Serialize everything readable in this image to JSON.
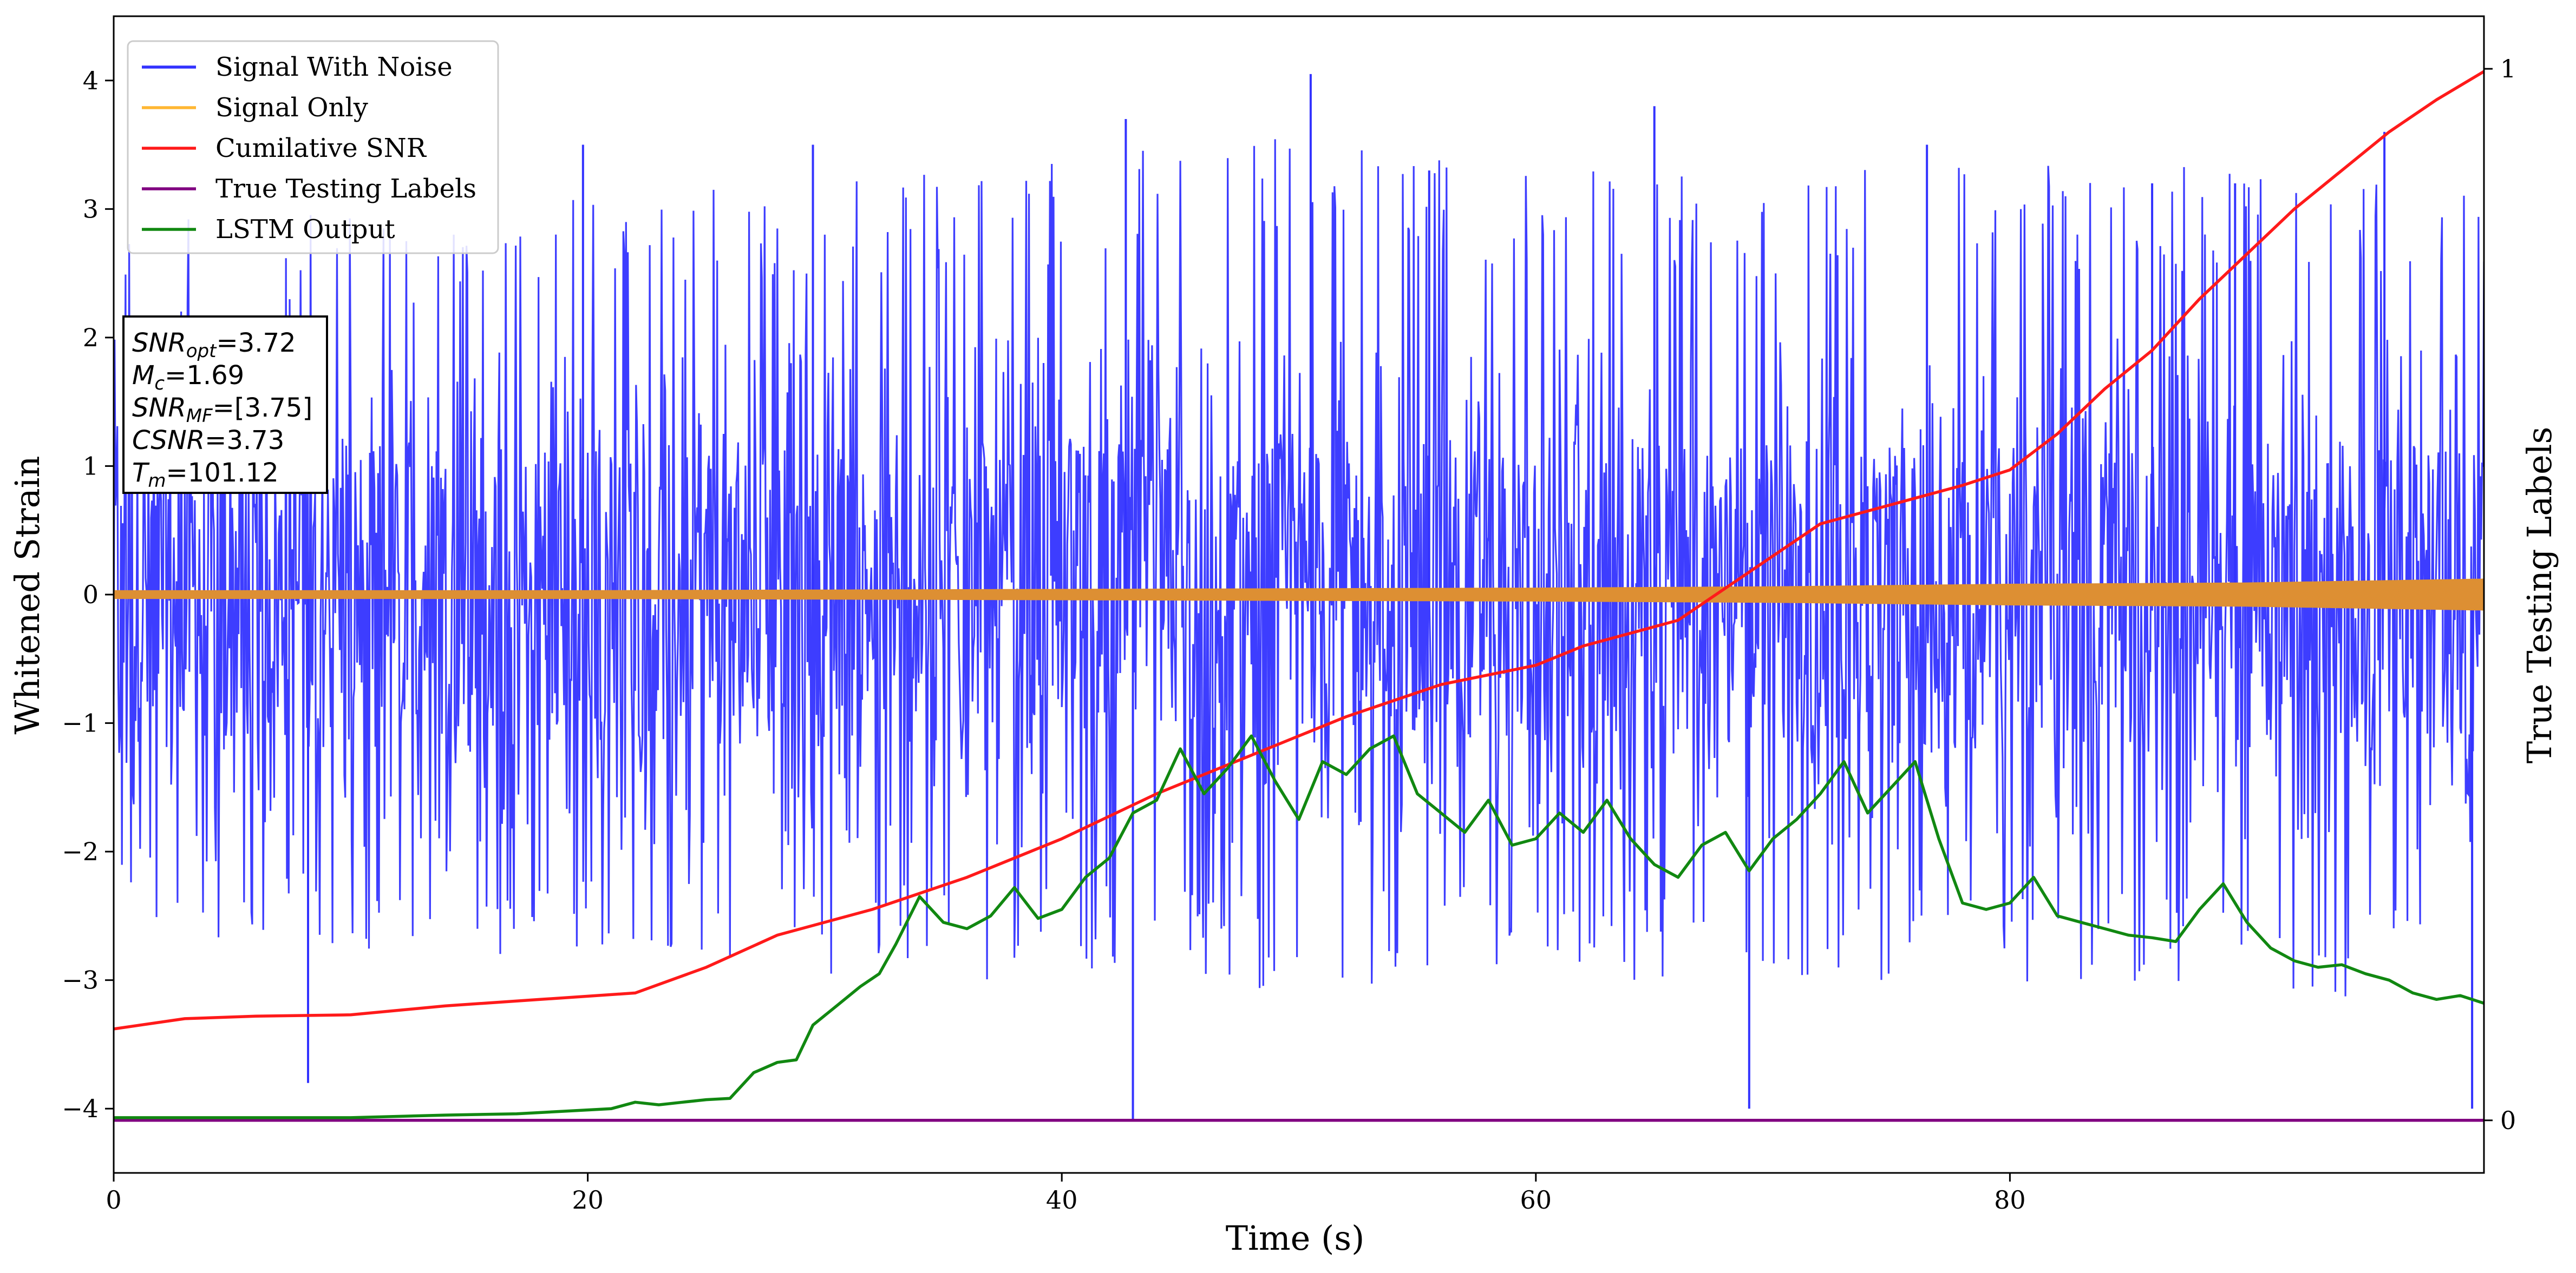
{
  "chart_data": {
    "type": "line",
    "xlabel": "Time (s)",
    "ylabel": "Whitened Strain",
    "ylabel_right": "True Testing Labels",
    "xlim": [
      0,
      100
    ],
    "ylim": [
      -4.5,
      4.5
    ],
    "ylim_right": [
      -0.05,
      1.05
    ],
    "x_ticks": [
      0,
      20,
      40,
      60,
      80
    ],
    "y_ticks": [
      -4,
      -3,
      -2,
      -1,
      0,
      1,
      2,
      3,
      4
    ],
    "y_ticks_right": [
      0,
      1
    ],
    "grid": false,
    "legend_position": "top-left",
    "legend": [
      {
        "label": "Signal With Noise",
        "color": "#3333ff"
      },
      {
        "label": "Signal Only",
        "color": "#ffb733"
      },
      {
        "label": "Cumilative SNR",
        "color": "#ff1a1a"
      },
      {
        "label": "True Testing Labels",
        "color": "#800080"
      },
      {
        "label": "LSTM Output",
        "color": "#118811"
      }
    ],
    "annotation_lines": [
      {
        "name": "SNR",
        "sub": "opt",
        "value": "=3.72"
      },
      {
        "name": "M",
        "sub": "c",
        "value": "=1.69"
      },
      {
        "name": "SNR",
        "sub": "MF",
        "value": "=[3.75]"
      },
      {
        "name": "CSNR",
        "sub": "",
        "value": "=3.73"
      },
      {
        "name": "T",
        "sub": "m",
        "value": "=101.12"
      }
    ],
    "series": [
      {
        "name": "Signal With Noise",
        "axis": "left",
        "color": "#3333ff",
        "note_values": "dense noise band, typical range -2.5..2.5, extremes",
        "band_envelope": {
          "x": [
            0,
            10,
            20,
            30,
            40,
            50,
            60,
            70,
            80,
            90,
            100
          ],
          "upper": [
            2.9,
            3.0,
            3.1,
            3.2,
            3.4,
            3.6,
            3.3,
            3.3,
            3.4,
            3.3,
            3.1
          ],
          "lower": [
            -2.7,
            -2.8,
            -2.9,
            -3.0,
            -3.0,
            -3.1,
            -3.0,
            -3.0,
            -3.1,
            -3.1,
            -3.2
          ]
        },
        "spikes": [
          [
            8.2,
            -3.8
          ],
          [
            19.8,
            3.5
          ],
          [
            29.5,
            3.5
          ],
          [
            42.7,
            3.7
          ],
          [
            43.0,
            -4.1
          ],
          [
            50.5,
            4.05
          ],
          [
            55.5,
            3.3
          ],
          [
            65.0,
            3.8
          ],
          [
            69.0,
            -4.0
          ],
          [
            76.5,
            3.5
          ],
          [
            86.0,
            3.2
          ],
          [
            89.5,
            3.2
          ],
          [
            95.8,
            3.6
          ],
          [
            99.5,
            -4.0
          ]
        ]
      },
      {
        "name": "Signal Only",
        "axis": "left",
        "color": "#dd8f33",
        "envelope": {
          "x": [
            0,
            20,
            40,
            60,
            70,
            80,
            90,
            100
          ],
          "amplitude": [
            0.03,
            0.03,
            0.04,
            0.05,
            0.06,
            0.08,
            0.09,
            0.12
          ]
        }
      },
      {
        "name": "Cumilative SNR",
        "axis": "left",
        "color": "#ff1a1a",
        "x": [
          0,
          3,
          6,
          10,
          14,
          18,
          22,
          25,
          28,
          32,
          36,
          40,
          44,
          48,
          52,
          56,
          60,
          62,
          64,
          66,
          68,
          70,
          72,
          74,
          76,
          78,
          80,
          82,
          84,
          86,
          88,
          90,
          92,
          94,
          96,
          98,
          100
        ],
        "values": [
          -3.38,
          -3.3,
          -3.28,
          -3.27,
          -3.2,
          -3.15,
          -3.1,
          -2.9,
          -2.65,
          -2.45,
          -2.2,
          -1.9,
          -1.55,
          -1.25,
          -0.95,
          -0.7,
          -0.55,
          -0.4,
          -0.3,
          -0.2,
          0.05,
          0.3,
          0.55,
          0.65,
          0.75,
          0.85,
          0.97,
          1.25,
          1.6,
          1.9,
          2.3,
          2.65,
          3.0,
          3.3,
          3.6,
          3.85,
          4.07
        ]
      },
      {
        "name": "True Testing Labels",
        "axis": "right",
        "color": "#800080",
        "x": [
          0,
          100
        ],
        "values": [
          0,
          0
        ]
      },
      {
        "name": "LSTM Output",
        "axis": "left",
        "color": "#118811",
        "x": [
          0,
          5,
          10,
          14,
          17,
          19,
          21,
          22,
          23,
          24,
          25,
          26,
          27,
          28,
          28.8,
          29.5,
          30.5,
          31.5,
          32.3,
          33,
          34,
          35,
          36,
          37,
          38,
          39,
          40,
          41,
          42,
          43,
          44,
          45,
          46,
          47,
          48,
          49,
          50,
          51,
          52,
          53,
          54,
          55,
          56,
          57,
          58,
          59,
          60,
          61,
          62,
          63,
          64,
          65,
          66,
          67,
          68,
          69,
          70,
          71,
          72,
          73,
          74,
          75,
          76,
          77,
          78,
          79,
          80,
          81,
          82,
          83,
          84,
          85,
          86,
          87,
          88,
          89,
          90,
          91,
          92,
          93,
          94,
          95,
          96,
          97,
          98,
          99,
          100
        ],
        "values": [
          -4.07,
          -4.07,
          -4.07,
          -4.05,
          -4.04,
          -4.02,
          -4.0,
          -3.95,
          -3.97,
          -3.95,
          -3.93,
          -3.92,
          -3.72,
          -3.64,
          -3.62,
          -3.35,
          -3.2,
          -3.05,
          -2.95,
          -2.72,
          -2.35,
          -2.55,
          -2.6,
          -2.5,
          -2.28,
          -2.52,
          -2.45,
          -2.2,
          -2.05,
          -1.7,
          -1.6,
          -1.2,
          -1.55,
          -1.35,
          -1.1,
          -1.45,
          -1.75,
          -1.3,
          -1.4,
          -1.2,
          -1.1,
          -1.55,
          -1.7,
          -1.85,
          -1.6,
          -1.95,
          -1.9,
          -1.7,
          -1.85,
          -1.6,
          -1.9,
          -2.1,
          -2.2,
          -1.95,
          -1.85,
          -2.15,
          -1.9,
          -1.75,
          -1.55,
          -1.3,
          -1.7,
          -1.5,
          -1.3,
          -1.9,
          -2.4,
          -2.45,
          -2.4,
          -2.2,
          -2.5,
          -2.55,
          -2.6,
          -2.65,
          -2.67,
          -2.7,
          -2.45,
          -2.25,
          -2.55,
          -2.75,
          -2.85,
          -2.9,
          -2.88,
          -2.95,
          -3.0,
          -3.1,
          -3.15,
          -3.12,
          -3.18
        ]
      }
    ]
  }
}
